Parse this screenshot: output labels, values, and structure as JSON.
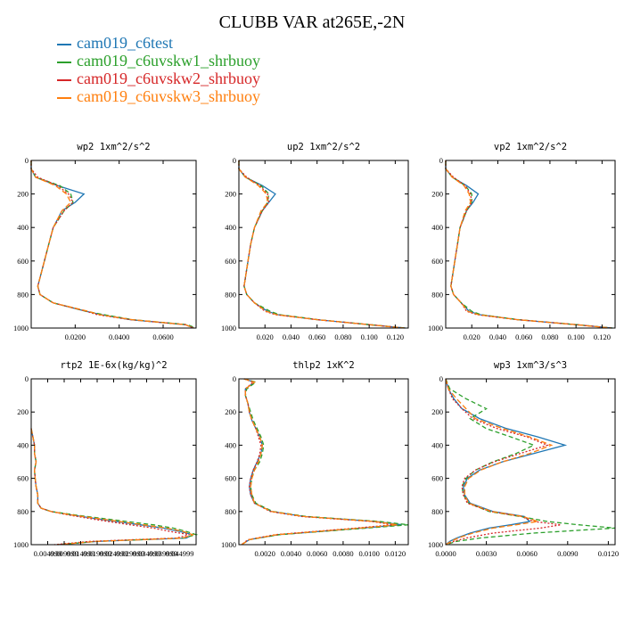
{
  "figure": {
    "title": "CLUBB VAR at265E,-2N",
    "legend": [
      {
        "label": "cam019_c6test",
        "color": "#1f77b4"
      },
      {
        "label": "cam019_c6uvskw1_shrbuoy",
        "color": "#2ca02c"
      },
      {
        "label": "cam019_c6uvskw2_shrbuoy",
        "color": "#d62728"
      },
      {
        "label": "cam019_c6uvskw3_shrbuoy",
        "color": "#ff7f0e"
      }
    ]
  },
  "chart_data": [
    {
      "type": "line",
      "title": "wp2  1xm^2/s^2",
      "xlim": [
        0.0,
        0.075
      ],
      "ylim": [
        1000,
        0
      ],
      "y_ticks": [
        0,
        200,
        400,
        600,
        800,
        1000
      ],
      "x_ticks": [
        0.02,
        0.04,
        0.06
      ],
      "x_tick_labels": [
        "0.0200",
        "0.0400",
        "0.0600"
      ],
      "y": [
        0,
        50,
        100,
        150,
        200,
        250,
        300,
        400,
        500,
        600,
        700,
        750,
        800,
        850,
        900,
        920,
        950,
        980,
        1000
      ],
      "series": [
        {
          "name": "cam019_c6test",
          "color": "#1f77b4",
          "dash": "",
          "values": [
            0.0,
            0.0,
            0.002,
            0.012,
            0.024,
            0.02,
            0.014,
            0.01,
            0.008,
            0.006,
            0.004,
            0.003,
            0.004,
            0.01,
            0.025,
            0.032,
            0.045,
            0.07,
            0.074
          ]
        },
        {
          "name": "cam019_c6uvskw1_shrbuoy",
          "color": "#2ca02c",
          "dash": "5,3",
          "values": [
            0.0,
            0.0,
            0.002,
            0.013,
            0.018,
            0.019,
            0.015,
            0.01,
            0.008,
            0.006,
            0.004,
            0.003,
            0.004,
            0.01,
            0.025,
            0.033,
            0.046,
            0.071,
            0.075
          ]
        },
        {
          "name": "cam019_c6uvskw2_shrbuoy",
          "color": "#d62728",
          "dash": "2,2",
          "values": [
            0.0,
            0.0,
            0.003,
            0.012,
            0.017,
            0.019,
            0.015,
            0.01,
            0.008,
            0.006,
            0.004,
            0.003,
            0.004,
            0.01,
            0.025,
            0.03,
            0.045,
            0.07,
            0.074
          ]
        },
        {
          "name": "cam019_c6uvskw3_shrbuoy",
          "color": "#ff7f0e",
          "dash": "6,3",
          "values": [
            0.0,
            0.0,
            0.002,
            0.011,
            0.016,
            0.018,
            0.014,
            0.01,
            0.008,
            0.006,
            0.004,
            0.003,
            0.004,
            0.01,
            0.026,
            0.031,
            0.046,
            0.07,
            0.074
          ]
        }
      ]
    },
    {
      "type": "line",
      "title": "up2  1xm^2/s^2",
      "xlim": [
        0.0,
        0.13
      ],
      "ylim": [
        1000,
        0
      ],
      "y_ticks": [
        0,
        200,
        400,
        600,
        800,
        1000
      ],
      "x_ticks": [
        0.02,
        0.04,
        0.06,
        0.08,
        0.1,
        0.12
      ],
      "x_tick_labels": [
        "0.020",
        "0.040",
        "0.060",
        "0.080",
        "0.100",
        "0.120"
      ],
      "y": [
        0,
        50,
        100,
        150,
        200,
        250,
        300,
        400,
        500,
        600,
        700,
        750,
        800,
        850,
        900,
        920,
        950,
        980,
        1000
      ],
      "series": [
        {
          "name": "cam019_c6test",
          "color": "#1f77b4",
          "dash": "",
          "values": [
            0.0,
            0.0,
            0.005,
            0.018,
            0.028,
            0.023,
            0.018,
            0.012,
            0.009,
            0.007,
            0.005,
            0.004,
            0.006,
            0.012,
            0.022,
            0.03,
            0.06,
            0.1,
            0.128
          ]
        },
        {
          "name": "cam019_c6uvskw1_shrbuoy",
          "color": "#2ca02c",
          "dash": "5,3",
          "values": [
            0.0,
            0.0,
            0.005,
            0.017,
            0.023,
            0.022,
            0.018,
            0.012,
            0.009,
            0.007,
            0.005,
            0.004,
            0.006,
            0.012,
            0.024,
            0.031,
            0.061,
            0.1,
            0.128
          ]
        },
        {
          "name": "cam019_c6uvskw2_shrbuoy",
          "color": "#d62728",
          "dash": "2,2",
          "values": [
            0.0,
            0.0,
            0.006,
            0.016,
            0.022,
            0.023,
            0.018,
            0.012,
            0.009,
            0.007,
            0.005,
            0.004,
            0.006,
            0.012,
            0.02,
            0.028,
            0.06,
            0.1,
            0.127
          ]
        },
        {
          "name": "cam019_c6uvskw3_shrbuoy",
          "color": "#ff7f0e",
          "dash": "6,3",
          "values": [
            0.0,
            0.0,
            0.005,
            0.015,
            0.021,
            0.022,
            0.017,
            0.012,
            0.009,
            0.007,
            0.005,
            0.004,
            0.006,
            0.012,
            0.021,
            0.029,
            0.06,
            0.1,
            0.127
          ]
        }
      ]
    },
    {
      "type": "line",
      "title": "vp2  1xm^2/s^2",
      "xlim": [
        0.0,
        0.13
      ],
      "ylim": [
        1000,
        0
      ],
      "y_ticks": [
        0,
        200,
        400,
        600,
        800,
        1000
      ],
      "x_ticks": [
        0.02,
        0.04,
        0.06,
        0.08,
        0.1,
        0.12
      ],
      "x_tick_labels": [
        "0.020",
        "0.040",
        "0.060",
        "0.080",
        "0.100",
        "0.120"
      ],
      "y": [
        0,
        50,
        100,
        150,
        200,
        250,
        300,
        400,
        500,
        600,
        700,
        750,
        800,
        850,
        900,
        920,
        950,
        980,
        1000
      ],
      "series": [
        {
          "name": "cam019_c6test",
          "color": "#1f77b4",
          "dash": "",
          "values": [
            0.0,
            0.0,
            0.005,
            0.016,
            0.025,
            0.021,
            0.016,
            0.011,
            0.009,
            0.007,
            0.005,
            0.004,
            0.006,
            0.012,
            0.018,
            0.026,
            0.055,
            0.1,
            0.128
          ]
        },
        {
          "name": "cam019_c6uvskw1_shrbuoy",
          "color": "#2ca02c",
          "dash": "5,3",
          "values": [
            0.0,
            0.0,
            0.005,
            0.015,
            0.02,
            0.02,
            0.016,
            0.011,
            0.009,
            0.007,
            0.005,
            0.004,
            0.006,
            0.012,
            0.02,
            0.027,
            0.056,
            0.1,
            0.128
          ]
        },
        {
          "name": "cam019_c6uvskw2_shrbuoy",
          "color": "#d62728",
          "dash": "2,2",
          "values": [
            0.0,
            0.0,
            0.006,
            0.015,
            0.019,
            0.02,
            0.016,
            0.011,
            0.009,
            0.007,
            0.005,
            0.004,
            0.006,
            0.012,
            0.016,
            0.024,
            0.055,
            0.1,
            0.127
          ]
        },
        {
          "name": "cam019_c6uvskw3_shrbuoy",
          "color": "#ff7f0e",
          "dash": "6,3",
          "values": [
            0.0,
            0.0,
            0.005,
            0.014,
            0.018,
            0.019,
            0.015,
            0.011,
            0.009,
            0.007,
            0.005,
            0.004,
            0.006,
            0.012,
            0.017,
            0.025,
            0.055,
            0.1,
            0.127
          ]
        }
      ]
    },
    {
      "type": "line",
      "title": "rtp2  1E-6x(kg/kg)^2",
      "xlim": [
        0.0,
        0.05
      ],
      "ylim": [
        1000,
        0
      ],
      "y_ticks": [
        0,
        200,
        400,
        600,
        800,
        1000
      ],
      "x_ticks": [
        0.005,
        0.01,
        0.015,
        0.02,
        0.025,
        0.03,
        0.035,
        0.04,
        0.045
      ],
      "x_tick_labels": [
        "0.004999",
        "0.009999",
        "0.014999",
        "0.019999",
        "0.024999",
        "0.029999",
        "0.034999",
        "0.039999",
        "0.044999"
      ],
      "y": [
        300,
        350,
        400,
        450,
        500,
        550,
        600,
        650,
        700,
        750,
        780,
        800,
        820,
        850,
        880,
        900,
        920,
        940,
        960,
        980,
        1000
      ],
      "series": [
        {
          "name": "cam019_c6test",
          "color": "#1f77b4",
          "dash": "",
          "values": [
            0.0,
            0.0005,
            0.001,
            0.001,
            0.0015,
            0.001,
            0.0012,
            0.0015,
            0.002,
            0.002,
            0.003,
            0.006,
            0.012,
            0.022,
            0.033,
            0.04,
            0.045,
            0.049,
            0.047,
            0.02,
            0.008
          ]
        },
        {
          "name": "cam019_c6uvskw1_shrbuoy",
          "color": "#2ca02c",
          "dash": "5,3",
          "values": [
            0.0,
            0.0005,
            0.001,
            0.001,
            0.0015,
            0.001,
            0.0012,
            0.0015,
            0.002,
            0.002,
            0.003,
            0.006,
            0.013,
            0.025,
            0.037,
            0.043,
            0.047,
            0.05,
            0.046,
            0.02,
            0.008
          ]
        },
        {
          "name": "cam019_c6uvskw2_shrbuoy",
          "color": "#d62728",
          "dash": "2,2",
          "values": [
            0.0,
            0.0005,
            0.001,
            0.001,
            0.0015,
            0.001,
            0.0012,
            0.0015,
            0.002,
            0.002,
            0.003,
            0.006,
            0.011,
            0.02,
            0.03,
            0.037,
            0.042,
            0.048,
            0.044,
            0.018,
            0.007
          ]
        },
        {
          "name": "cam019_c6uvskw3_shrbuoy",
          "color": "#ff7f0e",
          "dash": "6,3",
          "values": [
            0.0,
            0.0005,
            0.001,
            0.001,
            0.0015,
            0.001,
            0.0012,
            0.0015,
            0.002,
            0.002,
            0.003,
            0.006,
            0.012,
            0.023,
            0.034,
            0.041,
            0.046,
            0.049,
            0.046,
            0.02,
            0.008
          ]
        }
      ]
    },
    {
      "type": "line",
      "title": "thlp2  1xK^2",
      "xlim": [
        0.0,
        0.013
      ],
      "ylim": [
        1000,
        0
      ],
      "y_ticks": [
        0,
        200,
        400,
        600,
        800,
        1000
      ],
      "x_ticks": [
        0.002,
        0.004,
        0.006,
        0.008,
        0.01,
        0.012
      ],
      "x_tick_labels": [
        "0.0020",
        "0.0040",
        "0.0060",
        "0.0080",
        "0.0100",
        "0.0120"
      ],
      "y": [
        0,
        20,
        60,
        100,
        150,
        200,
        250,
        300,
        350,
        400,
        450,
        500,
        550,
        600,
        650,
        700,
        750,
        800,
        830,
        860,
        880,
        900,
        940,
        970,
        1000
      ],
      "series": [
        {
          "name": "cam019_c6test",
          "color": "#1f77b4",
          "dash": "",
          "values": [
            0.0004,
            0.0012,
            0.0005,
            0.0005,
            0.0007,
            0.0008,
            0.001,
            0.0013,
            0.0016,
            0.0018,
            0.0017,
            0.0014,
            0.0011,
            0.0009,
            0.0008,
            0.0009,
            0.0012,
            0.0025,
            0.005,
            0.0105,
            0.0125,
            0.0095,
            0.003,
            0.0008,
            0.0002
          ]
        },
        {
          "name": "cam019_c6uvskw1_shrbuoy",
          "color": "#2ca02c",
          "dash": "5,3",
          "values": [
            0.0004,
            0.0013,
            0.0006,
            0.0005,
            0.0007,
            0.0009,
            0.0011,
            0.0014,
            0.0017,
            0.0019,
            0.0018,
            0.0016,
            0.0012,
            0.001,
            0.0009,
            0.001,
            0.0013,
            0.0026,
            0.0052,
            0.0108,
            0.013,
            0.0098,
            0.0031,
            0.0008,
            0.0002
          ]
        },
        {
          "name": "cam019_c6uvskw2_shrbuoy",
          "color": "#d62728",
          "dash": "2,2",
          "values": [
            0.0004,
            0.0011,
            0.0005,
            0.0005,
            0.0007,
            0.0008,
            0.001,
            0.0013,
            0.0015,
            0.0017,
            0.0016,
            0.0014,
            0.0011,
            0.0009,
            0.0008,
            0.0009,
            0.0012,
            0.0024,
            0.0048,
            0.0102,
            0.0118,
            0.009,
            0.0028,
            0.0007,
            0.0002
          ]
        },
        {
          "name": "cam019_c6uvskw3_shrbuoy",
          "color": "#ff7f0e",
          "dash": "6,3",
          "values": [
            0.0004,
            0.0012,
            0.0005,
            0.0005,
            0.0007,
            0.0008,
            0.001,
            0.0013,
            0.0016,
            0.0018,
            0.0017,
            0.0015,
            0.0012,
            0.001,
            0.0009,
            0.001,
            0.0012,
            0.0025,
            0.005,
            0.0104,
            0.0122,
            0.0093,
            0.0029,
            0.0008,
            0.0002
          ]
        }
      ]
    },
    {
      "type": "line",
      "title": "wp3  1xm^3/s^3",
      "xlim": [
        0.0,
        0.0125
      ],
      "ylim": [
        1000,
        0
      ],
      "y_ticks": [
        0,
        200,
        400,
        600,
        800,
        1000
      ],
      "x_ticks": [
        0.0,
        0.003,
        0.006,
        0.009,
        0.012
      ],
      "x_tick_labels": [
        "0.0000",
        "0.0030",
        "0.0060",
        "0.0090",
        "0.0120"
      ],
      "y": [
        0,
        60,
        120,
        180,
        240,
        300,
        350,
        400,
        450,
        500,
        550,
        600,
        650,
        700,
        750,
        800,
        830,
        860,
        880,
        900,
        930,
        960,
        980,
        1000
      ],
      "series": [
        {
          "name": "cam019_c6test",
          "color": "#1f77b4",
          "dash": "",
          "values": [
            0.0,
            0.0002,
            0.0006,
            0.0012,
            0.0025,
            0.0045,
            0.0068,
            0.0088,
            0.0065,
            0.0042,
            0.0025,
            0.0016,
            0.0013,
            0.0014,
            0.0018,
            0.0035,
            0.0058,
            0.0062,
            0.0048,
            0.0032,
            0.0018,
            0.0008,
            0.0003,
            0.0
          ]
        },
        {
          "name": "cam019_c6uvskw1_shrbuoy",
          "color": "#2ca02c",
          "dash": "5,3",
          "values": [
            0.0,
            0.0003,
            0.0015,
            0.003,
            0.0018,
            0.003,
            0.0048,
            0.0065,
            0.0052,
            0.0035,
            0.0022,
            0.0015,
            0.0012,
            0.0013,
            0.0017,
            0.0032,
            0.0055,
            0.0075,
            0.0098,
            0.0125,
            0.0065,
            0.0025,
            0.0008,
            0.0
          ]
        },
        {
          "name": "cam019_c6uvskw2_shrbuoy",
          "color": "#d62728",
          "dash": "2,2",
          "values": [
            0.0,
            0.0002,
            0.0005,
            0.0012,
            0.002,
            0.0038,
            0.006,
            0.0075,
            0.0055,
            0.0036,
            0.0022,
            0.0014,
            0.0012,
            0.0013,
            0.0016,
            0.0033,
            0.0056,
            0.0065,
            0.0085,
            0.007,
            0.0035,
            0.0015,
            0.0006,
            0.0
          ]
        },
        {
          "name": "cam019_c6uvskw3_shrbuoy",
          "color": "#ff7f0e",
          "dash": "6,3",
          "values": [
            0.0,
            0.0002,
            0.0008,
            0.0015,
            0.0022,
            0.0042,
            0.0062,
            0.0078,
            0.0062,
            0.0042,
            0.0026,
            0.0017,
            0.0014,
            0.0014,
            0.0017,
            0.0034,
            0.0057,
            0.0068,
            0.0052,
            0.0035,
            0.002,
            0.0009,
            0.0004,
            0.0
          ]
        }
      ]
    }
  ]
}
